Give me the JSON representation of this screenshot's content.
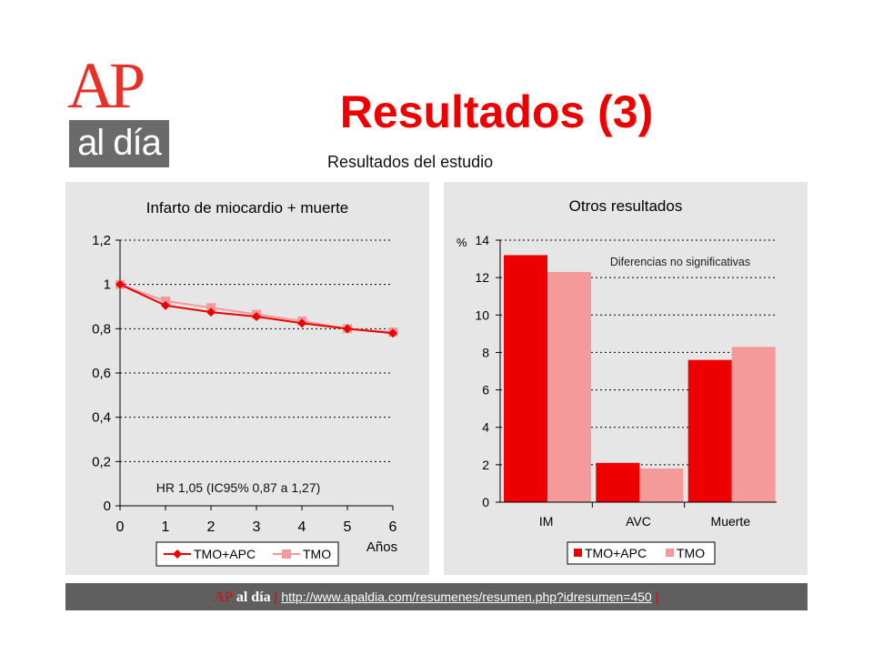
{
  "logo": {
    "ap_text": "AP",
    "aldia_text": "al día"
  },
  "header": {
    "title": "Resultados  (3)",
    "subtitle": "Resultados del estudio"
  },
  "colors": {
    "series1": "#ee0000",
    "series2": "#f59a9a",
    "title": "#ee0000",
    "panel": "#e6e6e6"
  },
  "chart_data": [
    {
      "type": "line",
      "title": "Infarto de miocardio + muerte",
      "xlabel": "Años",
      "ylabel": "",
      "x": [
        0,
        1,
        2,
        3,
        4,
        5,
        6
      ],
      "ylim": [
        0,
        1.2
      ],
      "yticks": [
        "0",
        "0,2",
        "0,4",
        "0,6",
        "0,8",
        "1",
        "1,2"
      ],
      "xticks": [
        "0",
        "1",
        "2",
        "3",
        "4",
        "5",
        "6"
      ],
      "grid": true,
      "legend": "bottom",
      "annotation": "HR 1,05 (IC95% 0,87 a 1,27)",
      "series": [
        {
          "name": "TMO+APC",
          "values": [
            1.0,
            0.905,
            0.875,
            0.855,
            0.825,
            0.8,
            0.78
          ]
        },
        {
          "name": "TMO",
          "values": [
            1.0,
            0.925,
            0.895,
            0.865,
            0.835,
            0.8,
            0.785
          ]
        }
      ]
    },
    {
      "type": "bar",
      "title": "Otros resultados",
      "xlabel": "",
      "ylabel": "%",
      "categories": [
        "IM",
        "AVC",
        "Muerte"
      ],
      "ylim": [
        0,
        14
      ],
      "yticks": [
        "0",
        "2",
        "4",
        "6",
        "8",
        "10",
        "12",
        "14"
      ],
      "grid": true,
      "legend": "bottom",
      "annotation": "Diferencias no significativas",
      "series": [
        {
          "name": "TMO+APC",
          "values": [
            13.2,
            2.1,
            7.6
          ]
        },
        {
          "name": "TMO",
          "values": [
            12.3,
            1.8,
            8.3
          ]
        }
      ]
    }
  ],
  "footer": {
    "ap": "AP",
    "aldia": "al día",
    "open_bracket": "[",
    "link": "http://www.apaldia.com/resumenes/resumen.php?idresumen=450",
    "close_bracket": "]"
  }
}
